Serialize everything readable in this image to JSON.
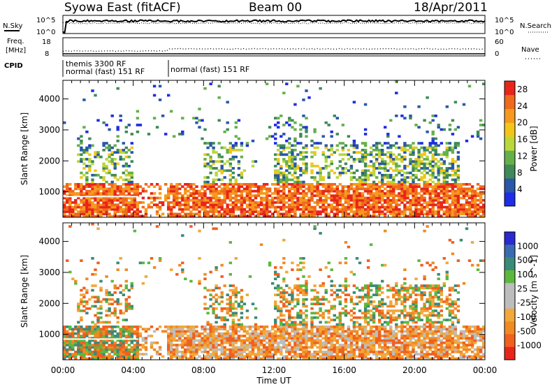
{
  "header": {
    "radar": "Syowa East (fitACF)",
    "beam": "Beam 00",
    "date": "18/Apr/2011"
  },
  "noise_panel": {
    "left_label": "N.Sky",
    "right_label": "N.Search",
    "left_ticks": [
      "10^5",
      "10^0"
    ],
    "right_ticks": [
      "10^5",
      "10^0"
    ]
  },
  "freq_panel": {
    "left_label_1": "Freq.",
    "left_label_2": "[MHz]",
    "left_ticks": [
      "18",
      "8"
    ],
    "right_label": "Nave",
    "right_ticks": [
      "60",
      "0"
    ]
  },
  "cpid": {
    "label": "CPID",
    "entries": [
      "themis 3300 RF",
      "normal (fast) 151 RF",
      "normal (fast) 151 RF"
    ]
  },
  "colors": {
    "power_scale": [
      "#1e2de6",
      "#2a57a8",
      "#3f8a58",
      "#66b04a",
      "#b8d83c",
      "#f2c619",
      "#f59a1e",
      "#ef6a1c",
      "#e8251b"
    ],
    "velocity_scale": [
      "#e8251b",
      "#f0601f",
      "#f08a22",
      "#f2a83a",
      "#bdbdbd",
      "#bdbdbd",
      "#5cb83d",
      "#3a8a78",
      "#3a6ab0",
      "#2a2ad0"
    ]
  },
  "chart_data": [
    {
      "type": "heatmap",
      "title": "Power",
      "ylabel": "Slant Range [km]",
      "xlabel": "Time UT",
      "x_ticks": [
        "00:00",
        "04:00",
        "08:00",
        "12:00",
        "16:00",
        "20:00",
        "00:00"
      ],
      "y_ticks": [
        1000,
        2000,
        3000,
        4000
      ],
      "ylim": [
        180,
        4600
      ],
      "xlim_hours": [
        0,
        24
      ],
      "colorbar_label": "Power [dB]",
      "colorbar_ticks": [
        4,
        8,
        12,
        16,
        20,
        24,
        28
      ],
      "colorbar_range": [
        0,
        30
      ]
    },
    {
      "type": "heatmap",
      "title": "Velocity",
      "ylabel": "Slant Range [km]",
      "xlabel": "Time UT",
      "x_ticks": [
        "00:00",
        "04:00",
        "08:00",
        "12:00",
        "16:00",
        "20:00",
        "00:00"
      ],
      "y_ticks": [
        1000,
        2000,
        3000,
        4000
      ],
      "ylim": [
        180,
        4600
      ],
      "xlim_hours": [
        0,
        24
      ],
      "colorbar_label": "Velocity [m s^-1]",
      "colorbar_ticks": [
        1000,
        500,
        100,
        25,
        -25,
        -100,
        -500,
        -1000
      ]
    }
  ]
}
